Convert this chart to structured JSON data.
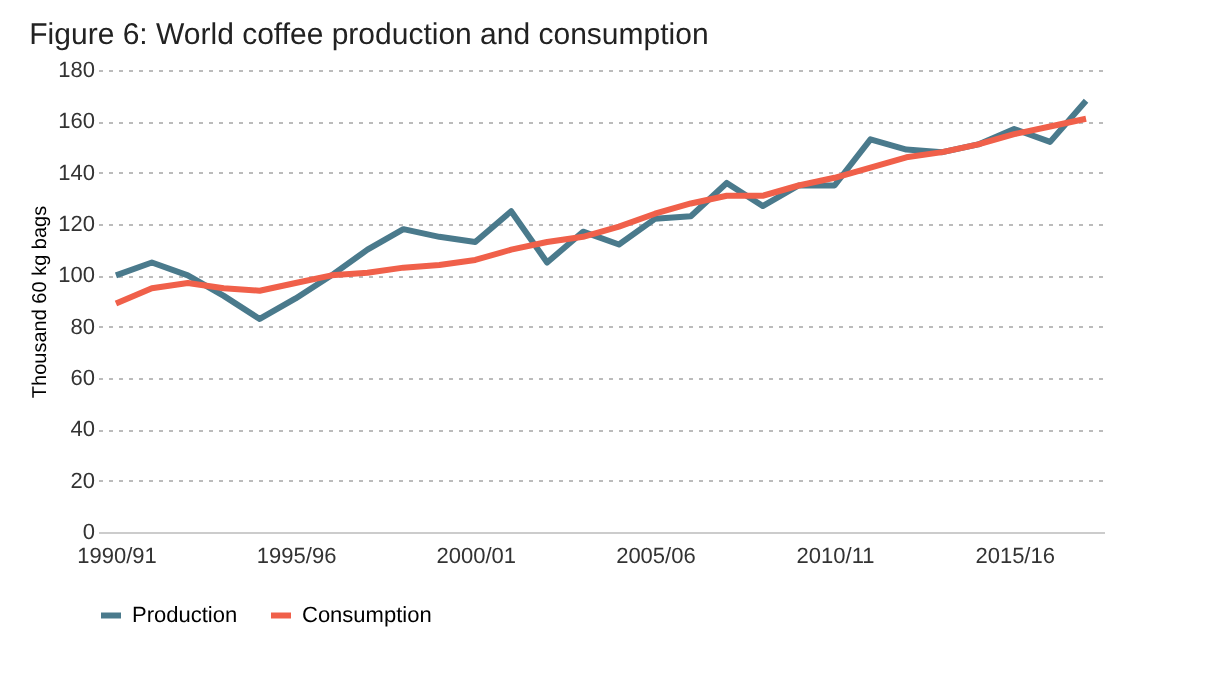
{
  "chart_data": {
    "type": "line",
    "title": "Figure 6: World coffee production and consumption",
    "ylabel": "Thousand 60 kg bags",
    "categories": [
      "1990/91",
      null,
      null,
      null,
      null,
      "1995/96",
      null,
      null,
      null,
      null,
      "2000/01",
      null,
      null,
      null,
      null,
      "2005/06",
      null,
      null,
      null,
      null,
      "2010/11",
      null,
      null,
      null,
      null,
      "2015/16",
      null,
      null
    ],
    "series": [
      {
        "name": "Production",
        "color": "#4a7a8c",
        "values": [
          100,
          105,
          100,
          92,
          83,
          91,
          100,
          110,
          118,
          115,
          113,
          125,
          105,
          117,
          112,
          122,
          123,
          136,
          127,
          135,
          135,
          153,
          149,
          148,
          151,
          157,
          152,
          168
        ]
      },
      {
        "name": "Consumption",
        "color": "#f0604a",
        "values": [
          89,
          95,
          97,
          95,
          94,
          97,
          100,
          101,
          103,
          104,
          106,
          110,
          113,
          115,
          119,
          124,
          128,
          131,
          131,
          135,
          138,
          142,
          146,
          148,
          151,
          155,
          158,
          161
        ]
      }
    ],
    "ylim": [
      0,
      180
    ],
    "yticks": [
      0,
      20,
      40,
      60,
      80,
      100,
      120,
      140,
      160,
      180
    ],
    "grid": "y",
    "legend": "bottom",
    "line_style": "solid",
    "marker": "none"
  }
}
